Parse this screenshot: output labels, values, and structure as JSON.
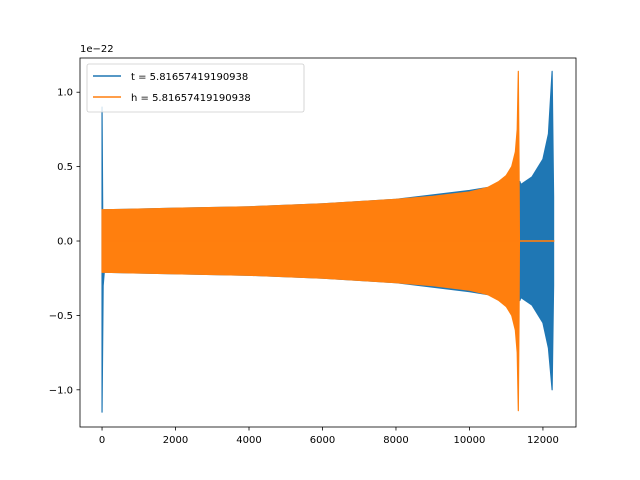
{
  "chart_data": {
    "type": "line",
    "title": "",
    "xlabel": "",
    "ylabel": "",
    "y_offset_text": "1e−22",
    "xlim": [
      -600,
      12900
    ],
    "ylim": [
      -1.25,
      1.23
    ],
    "x_ticks": [
      0,
      2000,
      4000,
      6000,
      8000,
      10000,
      12000
    ],
    "x_tick_labels": [
      "0",
      "2000",
      "4000",
      "6000",
      "8000",
      "10000",
      "12000"
    ],
    "y_ticks": [
      -1.0,
      -0.5,
      0.0,
      0.5,
      1.0
    ],
    "y_tick_labels": [
      "−1.0",
      "−0.5",
      "0.0",
      "0.5",
      "1.0"
    ],
    "grid": false,
    "legend_location": "upper left",
    "series": [
      {
        "name": "t = 5.81657419190938",
        "color": "#1f77b4",
        "description_of_shape": "burst at start, chirp envelope growing to merger near x=12300",
        "envelope": {
          "x": [
            0,
            30,
            60,
            100,
            2000,
            4000,
            6000,
            8000,
            10000,
            11000,
            11300,
            11370,
            11400,
            11700,
            12000,
            12150,
            12250,
            12290
          ],
          "upper": [
            0.9,
            -0.3,
            0.21,
            0.21,
            0.22,
            0.23,
            0.25,
            0.28,
            0.34,
            0.38,
            0.4,
            0.4,
            0.38,
            0.43,
            0.55,
            0.72,
            1.14,
            0.3
          ],
          "lower": [
            -1.15,
            -0.3,
            -0.21,
            -0.21,
            -0.22,
            -0.23,
            -0.25,
            -0.28,
            -0.34,
            -0.38,
            -0.4,
            -0.4,
            -0.38,
            -0.43,
            -0.55,
            -0.72,
            -1.0,
            -0.3
          ]
        }
      },
      {
        "name": "h = 5.81657419190938",
        "color": "#ff7f0e",
        "description_of_shape": "chirp envelope from x=0 growing to merger near x=11350, then zero to x=12300",
        "envelope": {
          "x": [
            0,
            100,
            2000,
            4000,
            6000,
            8000,
            9000,
            10000,
            10500,
            10800,
            11000,
            11150,
            11250,
            11300,
            11330,
            11350,
            11360,
            12300
          ],
          "upper": [
            0.21,
            0.21,
            0.22,
            0.23,
            0.25,
            0.28,
            0.3,
            0.33,
            0.36,
            0.4,
            0.44,
            0.5,
            0.6,
            0.75,
            1.14,
            0.5,
            0.0,
            0.0
          ],
          "lower": [
            -0.21,
            -0.21,
            -0.22,
            -0.23,
            -0.25,
            -0.28,
            -0.3,
            -0.33,
            -0.36,
            -0.4,
            -0.44,
            -0.5,
            -0.6,
            -0.75,
            -1.14,
            -0.5,
            0.0,
            0.0
          ]
        }
      }
    ]
  }
}
